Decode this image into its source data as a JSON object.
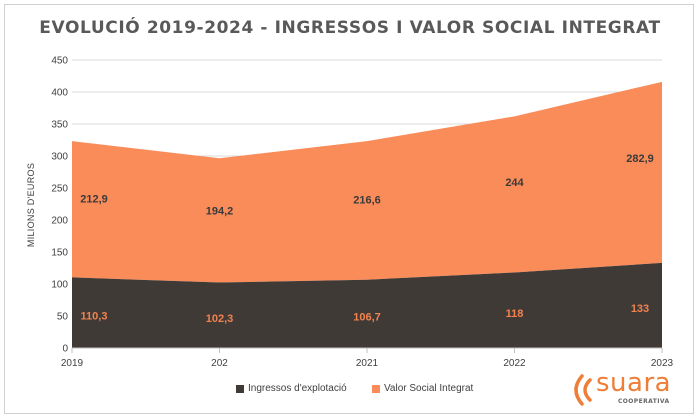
{
  "chart_data": {
    "type": "area",
    "stacked": true,
    "title": "EVOLUCIÓ 2019-2024 - INGRESSOS I VALOR SOCIAL INTEGRAT",
    "xlabel": "",
    "ylabel": "MILIONS D'EUROS",
    "categories": [
      "2019",
      "202",
      "2021",
      "2022",
      "2023"
    ],
    "ylim": [
      0,
      450
    ],
    "yticks": [
      0,
      50,
      100,
      150,
      200,
      250,
      300,
      350,
      400,
      450
    ],
    "grid": true,
    "legend_position": "bottom",
    "series": [
      {
        "name": "Ingressos d'explotació",
        "color": "#403a37",
        "values": [
          110.3,
          102.3,
          106.7,
          118,
          133
        ],
        "labels": [
          "110,3",
          "102,3",
          "106,7",
          "118",
          "133"
        ],
        "label_color": "#f0834f"
      },
      {
        "name": "Valor Social Integrat",
        "color": "#fa8c5a",
        "values": [
          212.9,
          194.2,
          216.6,
          244,
          282.9
        ],
        "labels": [
          "212,9",
          "194,2",
          "216,6",
          "244",
          "282,9"
        ],
        "label_color": "#3a3a3a"
      }
    ]
  },
  "logo": {
    "word": "suara",
    "sub": "COOPERATIVA",
    "color": "#ee7d37"
  }
}
